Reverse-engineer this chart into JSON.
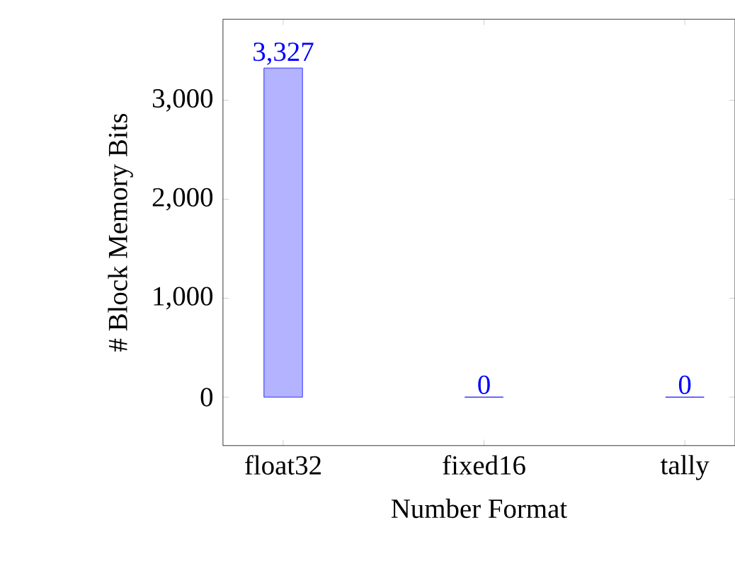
{
  "chart_data": {
    "type": "bar",
    "xlabel": "Number Format",
    "ylabel": "# Block Memory Bits",
    "categories": [
      "float32",
      "fixed16",
      "tally"
    ],
    "values": [
      3327,
      0,
      0
    ],
    "value_labels": [
      "3,327",
      "0",
      "0"
    ],
    "colors": [
      "#b3b3ff",
      "#0000ff",
      "#0000ff"
    ],
    "ylim": [
      -490,
      3820
    ],
    "yticks": [
      0,
      {
        "value": 1000,
        "label": "1,000"
      },
      {
        "value": 2000,
        "label": "2,000"
      },
      {
        "value": 3000,
        "label": "3,000"
      }
    ],
    "grid": false
  }
}
